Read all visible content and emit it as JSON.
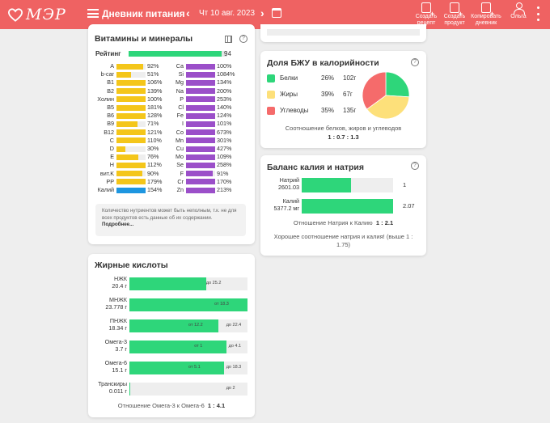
{
  "header": {
    "logo_text": "МЭР",
    "title": "Дневник питания",
    "date": "Чт 10 авг. 2023",
    "actions": [
      {
        "label": "Создать рецепт"
      },
      {
        "label": "Создать продукт"
      },
      {
        "label": "Копировать дневник"
      }
    ],
    "user": "Ольга"
  },
  "colors": {
    "accent": "#ef6262",
    "green": "#2ed67a",
    "yellow": "#f4c61a",
    "purple": "#9b4fc9",
    "blue": "#1e96e0",
    "pie_proteins": "#2ed67a",
    "pie_fats": "#fde07a",
    "pie_carbs": "#f56b6b"
  },
  "vitamins": {
    "title": "Витамины и минералы",
    "rating_label": "Рейтинг",
    "rating_value": "94",
    "rating_fraction": 0.94,
    "left": [
      {
        "name": "A",
        "value": "92%",
        "fill": 0.92,
        "color": "#f4c61a"
      },
      {
        "name": "b-car",
        "value": "51%",
        "fill": 0.51,
        "color": "#f4c61a"
      },
      {
        "name": "B1",
        "value": "106%",
        "fill": 1,
        "color": "#f4c61a"
      },
      {
        "name": "B2",
        "value": "139%",
        "fill": 1,
        "color": "#f4c61a"
      },
      {
        "name": "Холин",
        "value": "100%",
        "fill": 1,
        "color": "#f4c61a"
      },
      {
        "name": "B5",
        "value": "181%",
        "fill": 1,
        "color": "#f4c61a"
      },
      {
        "name": "B6",
        "value": "128%",
        "fill": 1,
        "color": "#f4c61a"
      },
      {
        "name": "B9",
        "value": "71%",
        "fill": 0.71,
        "color": "#f4c61a"
      },
      {
        "name": "B12",
        "value": "121%",
        "fill": 1,
        "color": "#f4c61a"
      },
      {
        "name": "C",
        "value": "110%",
        "fill": 1,
        "color": "#f4c61a"
      },
      {
        "name": "D",
        "value": "30%",
        "fill": 0.3,
        "color": "#f4c61a"
      },
      {
        "name": "E",
        "value": "76%",
        "fill": 0.76,
        "color": "#f4c61a"
      },
      {
        "name": "H",
        "value": "112%",
        "fill": 1,
        "color": "#f4c61a"
      },
      {
        "name": "вит.K",
        "value": "90%",
        "fill": 0.9,
        "color": "#f4c61a"
      },
      {
        "name": "PP",
        "value": "179%",
        "fill": 1,
        "color": "#f4c61a"
      },
      {
        "name": "Калий",
        "value": "154%",
        "fill": 1,
        "color": "#1e96e0"
      }
    ],
    "right": [
      {
        "name": "Ca",
        "value": "100%",
        "fill": 1,
        "color": "#9b4fc9"
      },
      {
        "name": "Si",
        "value": "1084%",
        "fill": 1,
        "color": "#9b4fc9"
      },
      {
        "name": "Mg",
        "value": "134%",
        "fill": 1,
        "color": "#9b4fc9"
      },
      {
        "name": "Na",
        "value": "200%",
        "fill": 1,
        "color": "#9b4fc9"
      },
      {
        "name": "P",
        "value": "253%",
        "fill": 1,
        "color": "#9b4fc9"
      },
      {
        "name": "Cl",
        "value": "140%",
        "fill": 1,
        "color": "#9b4fc9"
      },
      {
        "name": "Fe",
        "value": "124%",
        "fill": 1,
        "color": "#9b4fc9"
      },
      {
        "name": "I",
        "value": "101%",
        "fill": 1,
        "color": "#9b4fc9"
      },
      {
        "name": "Co",
        "value": "673%",
        "fill": 1,
        "color": "#9b4fc9"
      },
      {
        "name": "Mn",
        "value": "301%",
        "fill": 1,
        "color": "#9b4fc9"
      },
      {
        "name": "Cu",
        "value": "427%",
        "fill": 1,
        "color": "#9b4fc9"
      },
      {
        "name": "Mo",
        "value": "109%",
        "fill": 1,
        "color": "#9b4fc9"
      },
      {
        "name": "Se",
        "value": "258%",
        "fill": 1,
        "color": "#9b4fc9"
      },
      {
        "name": "F",
        "value": "91%",
        "fill": 0.91,
        "color": "#9b4fc9"
      },
      {
        "name": "Cr",
        "value": "170%",
        "fill": 1,
        "color": "#9b4fc9"
      },
      {
        "name": "Zn",
        "value": "213%",
        "fill": 1,
        "color": "#9b4fc9"
      }
    ],
    "note": "Количество нутриентов может быть неполным, т.к. не для всех продуктов есть данные об их содержании.",
    "note_link": "Подробнее..."
  },
  "fatty_acids": {
    "title": "Жирные кислоты",
    "rows": [
      {
        "name": "НЖК",
        "amount": "20.4 г",
        "fill": 0.65,
        "norm": "до 25.2",
        "norm_fill": 0.65
      },
      {
        "name": "МНЖК",
        "amount": "23.778 г",
        "fill": 1,
        "norm": "от 18.3",
        "norm_fill": 0.72
      },
      {
        "name": "ПНЖК",
        "amount": "18.34 г",
        "fill": 0.75,
        "norm": "от 12.2",
        "norm_fill": 0.5,
        "norm2": "до 22.4",
        "norm2_fill": 0.82
      },
      {
        "name": "Омега-3",
        "amount": "3.7 г",
        "fill": 0.82,
        "norm": "от 1",
        "norm_fill": 0.55,
        "norm2": "до 4.1",
        "norm2_fill": 0.84
      },
      {
        "name": "Омега-6",
        "amount": "15.1 г",
        "fill": 0.8,
        "norm": "от 5.1",
        "norm_fill": 0.5,
        "norm2": "до 18.3",
        "norm2_fill": 0.82
      },
      {
        "name": "Транскиры",
        "amount": "0.011 г",
        "fill": 0.01,
        "norm": "до 2",
        "norm_fill": 0.82
      }
    ],
    "ratio_label": "Отношение Омега-3 к Омега-6",
    "ratio_value": "1 : 4.1"
  },
  "bju": {
    "title": "Доля БЖУ в калорийности",
    "rows": [
      {
        "name": "Белки",
        "percent": "26%",
        "grams": "102г",
        "share": 0.26,
        "color": "#2ed67a"
      },
      {
        "name": "Жиры",
        "percent": "39%",
        "grams": "67г",
        "share": 0.39,
        "color": "#fde07a"
      },
      {
        "name": "Углеводы",
        "percent": "35%",
        "grams": "135г",
        "share": 0.35,
        "color": "#f56b6b"
      }
    ],
    "ratio_label": "Соотношение белков, жиров и углеводов",
    "ratio_value": "1 : 0.7 : 1.3"
  },
  "balance": {
    "title": "Баланс калия и натрия",
    "rows": [
      {
        "name": "Натрий",
        "amount": "2601.03",
        "fill": 0.54,
        "value": "1"
      },
      {
        "name": "Калий",
        "amount": "5377.2 мг",
        "fill": 1,
        "value": "2.07"
      }
    ],
    "ratio_label": "Отношение Натрия к Калию",
    "ratio_value": "1 : 2.1",
    "summary": "Хорошее соотношение натрия и калия! (выше 1 : 1.75)"
  }
}
